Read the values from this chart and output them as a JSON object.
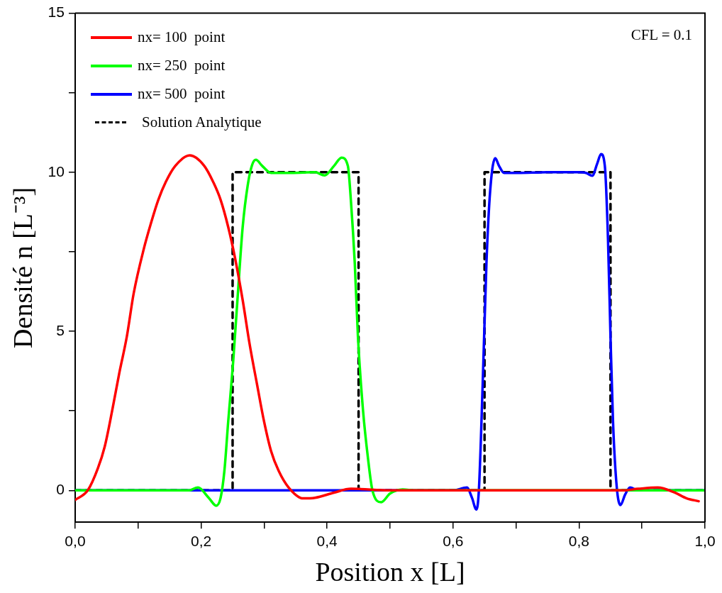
{
  "chart_data": {
    "type": "line",
    "xlabel": "Position x [L]",
    "ylabel": "Densité n [L⁻³]",
    "xlim": [
      0,
      1
    ],
    "ylim": [
      -1,
      15
    ],
    "xticks": [
      {
        "value": 0,
        "label": "0,0"
      },
      {
        "value": 0.1,
        "label": null
      },
      {
        "value": 0.2,
        "label": "0,2"
      },
      {
        "value": 0.3,
        "label": null
      },
      {
        "value": 0.4,
        "label": "0,4"
      },
      {
        "value": 0.5,
        "label": null
      },
      {
        "value": 0.6,
        "label": "0,6"
      },
      {
        "value": 0.7,
        "label": null
      },
      {
        "value": 0.8,
        "label": "0,8"
      },
      {
        "value": 0.9,
        "label": null
      },
      {
        "value": 1,
        "label": "1,0"
      }
    ],
    "yticks": [
      0,
      {
        "value": 2.5,
        "label": null
      },
      5,
      {
        "value": 7.5,
        "label": null
      },
      10,
      {
        "value": 12.5,
        "label": null
      },
      15
    ],
    "grid": false,
    "legend": "top left",
    "marker": "none",
    "annotations": [
      "CFL = 0.1"
    ],
    "series": [
      {
        "name": "nx= 100  point",
        "color": "#ff0000",
        "x": [
          0,
          0.02,
          0.036,
          0.047,
          0.059,
          0.07,
          0.082,
          0.093,
          0.109,
          0.121,
          0.132,
          0.144,
          0.159,
          0.182,
          0.205,
          0.22,
          0.231,
          0.243,
          0.254,
          0.266,
          0.277,
          0.289,
          0.3,
          0.311,
          0.323,
          0.339,
          0.362,
          0.381,
          0.411,
          0.438,
          0.5,
          0.6,
          0.7,
          0.8,
          0.87,
          0.894,
          0.925,
          0.952,
          0.971,
          0.99
        ],
        "values": [
          -0.3,
          0,
          0.69,
          1.38,
          2.53,
          3.68,
          4.83,
          6.2,
          7.59,
          8.44,
          9.13,
          9.7,
          10.2,
          10.53,
          10.2,
          9.66,
          9.13,
          8.28,
          7.29,
          5.98,
          4.6,
          3.31,
          2.16,
          1.24,
          0.62,
          0.09,
          -0.25,
          -0.23,
          -0.07,
          0.05,
          0,
          0,
          0,
          0,
          0,
          0.05,
          0.09,
          -0.07,
          -0.25,
          -0.34
        ]
      },
      {
        "name": "nx= 250  point",
        "color": "#00ff00",
        "x": [
          0,
          0.1,
          0.18,
          0.195,
          0.212,
          0.224,
          0.231,
          0.237,
          0.243,
          0.251,
          0.259,
          0.266,
          0.274,
          0.281,
          0.287,
          0.297,
          0.311,
          0.343,
          0.381,
          0.396,
          0.411,
          0.423,
          0.433,
          0.438,
          0.444,
          0.449,
          0.457,
          0.465,
          0.472,
          0.486,
          0.5,
          0.52,
          0.54,
          0.7,
          1
        ],
        "values": [
          0,
          0,
          0,
          0.09,
          -0.23,
          -0.48,
          -0.23,
          0.62,
          2.16,
          4.07,
          6.37,
          8.28,
          9.59,
          10.23,
          10.39,
          10.2,
          9.98,
          9.98,
          10,
          9.9,
          10.2,
          10.46,
          10.2,
          9.06,
          7.13,
          4.83,
          2.53,
          1,
          0,
          -0.37,
          -0.1,
          0.03,
          0,
          0,
          0
        ]
      },
      {
        "name": "nx= 500  point",
        "color": "#0000ff",
        "x": [
          0,
          0.3,
          0.6,
          0.622,
          0.63,
          0.637,
          0.641,
          0.647,
          0.653,
          0.659,
          0.667,
          0.673,
          0.681,
          0.702,
          0.75,
          0.798,
          0.811,
          0.821,
          0.829,
          0.835,
          0.841,
          0.846,
          0.85,
          0.854,
          0.86,
          0.866,
          0.873,
          0.881,
          0.894,
          1
        ],
        "values": [
          0,
          0,
          0,
          0.09,
          -0.23,
          -0.6,
          0,
          3.31,
          7.13,
          9.43,
          10.44,
          10.2,
          9.98,
          9.98,
          10,
          10,
          9.98,
          9.89,
          10.28,
          10.57,
          10.2,
          7.91,
          4.83,
          2.16,
          0.09,
          -0.46,
          -0.14,
          0.09,
          0,
          0
        ]
      },
      {
        "name": "Solution Analytique",
        "color": "#000000",
        "line_style": "dashed",
        "x": [
          0,
          0.25,
          0.25,
          0.45,
          0.45,
          0.65,
          0.65,
          0.85,
          0.85,
          1
        ],
        "values": [
          0,
          0,
          10,
          10,
          0,
          0,
          10,
          10,
          0,
          0
        ]
      }
    ]
  }
}
